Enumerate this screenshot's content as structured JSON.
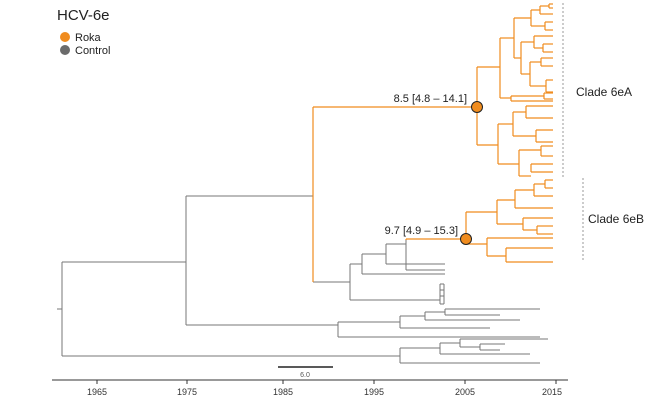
{
  "title": "HCV-6e",
  "legend": {
    "items": [
      {
        "label": "Roka",
        "color": "#f08c1e"
      },
      {
        "label": "Control",
        "color": "#6b6b6b"
      }
    ]
  },
  "colors": {
    "roka": "#f08c1e",
    "control": "#777777",
    "node_fill": "#f08c1e",
    "node_stroke": "#222222",
    "axis": "#333333",
    "bracket": "#9a9a9a"
  },
  "node_labels": {
    "clade_a": "8.5 [4.8 – 14.1]",
    "clade_b": "9.7 [4.9 – 15.3]"
  },
  "clade_labels": {
    "a": "Clade 6eA",
    "b": "Clade 6eB"
  },
  "scale_bar": {
    "label": "6.0"
  },
  "axis": {
    "ticks": [
      "1965",
      "1975",
      "1985",
      "1995",
      "2005",
      "2015"
    ]
  }
}
